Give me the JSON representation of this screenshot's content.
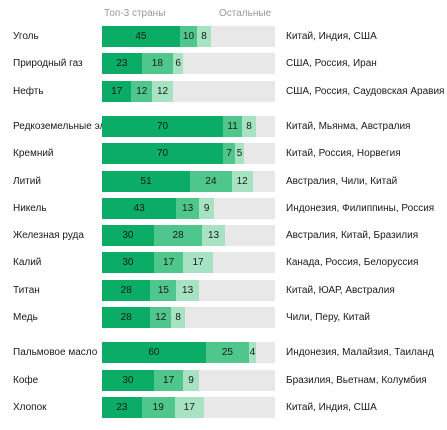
{
  "chart_data": {
    "type": "bar",
    "stacked": true,
    "max": 100,
    "headers": {
      "top3": "Топ-3 страны",
      "others": "Остальные"
    },
    "colors": {
      "first": "#0bad66",
      "second": "#4fc68b",
      "third": "#a7e2c3",
      "rest": "#e8e8e8"
    },
    "groups": [
      {
        "rows": [
          {
            "name": "Уголь",
            "values": [
              45,
              10,
              8
            ],
            "countries": "Китай, Индия, США"
          },
          {
            "name": "Природный газ",
            "values": [
              23,
              18,
              6
            ],
            "countries": "США, Россия, Иран"
          },
          {
            "name": "Нефть",
            "values": [
              17,
              12,
              12
            ],
            "countries": "США, Россия, Саудовская Аравия"
          }
        ]
      },
      {
        "rows": [
          {
            "name": "Редкоземельные элементы",
            "values": [
              70,
              11,
              8
            ],
            "countries": "Китай, Мьянма, Австралия"
          },
          {
            "name": "Кремний",
            "values": [
              70,
              7,
              5
            ],
            "countries": "Китай, Россия, Норвегия"
          },
          {
            "name": "Литий",
            "values": [
              51,
              24,
              12
            ],
            "countries": "Австралия, Чили, Китай"
          },
          {
            "name": "Никель",
            "values": [
              43,
              13,
              9
            ],
            "countries": "Индонезия, Филиппины, Россия"
          },
          {
            "name": "Железная руда",
            "values": [
              30,
              28,
              13
            ],
            "countries": "Австралия, Китай, Бразилия"
          },
          {
            "name": "Калий",
            "values": [
              30,
              17,
              17
            ],
            "countries": "Канада, Россия, Белоруссия"
          },
          {
            "name": "Титан",
            "values": [
              28,
              15,
              13
            ],
            "countries": "Китай, ЮАР, Австралия"
          },
          {
            "name": "Медь",
            "values": [
              28,
              12,
              8
            ],
            "countries": "Чили, Перу, Китай"
          }
        ]
      },
      {
        "rows": [
          {
            "name": "Пальмовое масло",
            "values": [
              60,
              25,
              4
            ],
            "countries": "Индонезия, Малайзия, Таиланд"
          },
          {
            "name": "Кофе",
            "values": [
              30,
              17,
              9
            ],
            "countries": "Бразилия, Вьетнам, Колумбия"
          },
          {
            "name": "Хлопок",
            "values": [
              23,
              19,
              17
            ],
            "countries": "Китай, Индия, США"
          }
        ]
      }
    ]
  }
}
